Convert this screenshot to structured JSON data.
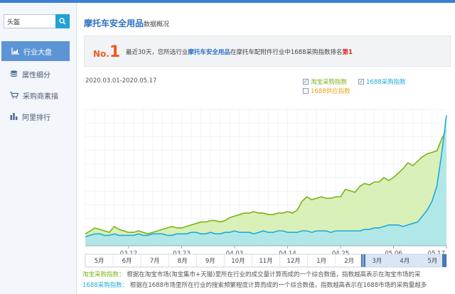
{
  "sidebar": {
    "search": {
      "value": "头盔"
    },
    "items": [
      {
        "label": "行业大盘",
        "icon": "area-chart-icon",
        "active": true
      },
      {
        "label": "属性细分",
        "icon": "layers-icon",
        "active": false
      },
      {
        "label": "采购商素描",
        "icon": "cart-icon",
        "active": false
      },
      {
        "label": "阿里排行",
        "icon": "bar-chart-icon",
        "active": false
      }
    ]
  },
  "header": {
    "title": "摩托车安全用品",
    "subtitle": "数据概况"
  },
  "rank": {
    "no_prefix": "No.",
    "no_value": "1",
    "text_a": "最近30天，您所选行业",
    "industry": "摩托车安全用品",
    "text_b": "在摩托车配附件行业中1688采购指数排名",
    "rank_word": "第1"
  },
  "chart": {
    "date_range": "2020.03.01-2020.05.17",
    "legend": [
      {
        "name": "淘宝采购指数",
        "checked": true,
        "color": "#7ab317"
      },
      {
        "name": "1688采购指数",
        "checked": true,
        "color": "#1fa9d8"
      },
      {
        "name": "1688供应指数",
        "checked": false,
        "color": "#e8a317"
      }
    ]
  },
  "chart_data": {
    "type": "area",
    "x": [
      "03.03",
      "03.04",
      "03.05",
      "03.06",
      "03.07",
      "03.08",
      "03.09",
      "03.10",
      "03.11",
      "03.12",
      "03.13",
      "03.14",
      "03.15",
      "03.16",
      "03.17",
      "03.18",
      "03.19",
      "03.20",
      "03.21",
      "03.22",
      "03.23",
      "03.24",
      "03.25",
      "03.26",
      "03.27",
      "03.28",
      "03.29",
      "03.30",
      "03.31",
      "04.01",
      "04.02",
      "04.03",
      "04.04",
      "04.05",
      "04.06",
      "04.07",
      "04.08",
      "04.09",
      "04.10",
      "04.11",
      "04.12",
      "04.13",
      "04.14",
      "04.15",
      "04.16",
      "04.17",
      "04.18",
      "04.19",
      "04.20",
      "04.21",
      "04.22",
      "04.23",
      "04.24",
      "04.25",
      "04.26",
      "04.27",
      "04.28",
      "04.29",
      "04.30",
      "05.01",
      "05.02",
      "05.03",
      "05.04",
      "05.05",
      "05.06",
      "05.07",
      "05.08",
      "05.09",
      "05.10",
      "05.11",
      "05.12",
      "05.13",
      "05.14",
      "05.15",
      "05.16",
      "05.17"
    ],
    "xticks": [
      "03.12",
      "03.23",
      "04.03",
      "04.14",
      "04.25",
      "05.06",
      "05.17"
    ],
    "series": [
      {
        "name": "淘宝采购指数",
        "color": "#7ab317",
        "fill": "#d5eeb0",
        "values": [
          8,
          10,
          12,
          11,
          10,
          9,
          13,
          11,
          10,
          9,
          9,
          10,
          9,
          8,
          9,
          10,
          11,
          12,
          13,
          12,
          12,
          13,
          14,
          15,
          16,
          16,
          17,
          17,
          16,
          17,
          19,
          20,
          21,
          22,
          22,
          23,
          22,
          22,
          21,
          21,
          22,
          22,
          23,
          22,
          24,
          30,
          33,
          31,
          32,
          33,
          32,
          32,
          33,
          33,
          38,
          37,
          36,
          40,
          42,
          41,
          43,
          43,
          46,
          44,
          46,
          49,
          52,
          56,
          54,
          57,
          60,
          62,
          63,
          64,
          72,
          78
        ]
      },
      {
        "name": "1688采购指数",
        "color": "#1fa9d8",
        "fill": "#a9e6ee",
        "values": [
          6,
          7,
          8,
          8,
          7,
          7,
          8,
          7,
          7,
          7,
          7,
          8,
          7,
          7,
          8,
          8,
          8,
          7,
          7,
          8,
          8,
          8,
          9,
          9,
          8,
          8,
          9,
          8,
          8,
          9,
          9,
          10,
          9,
          9,
          9,
          8,
          9,
          10,
          9,
          9,
          10,
          10,
          9,
          9,
          9,
          10,
          10,
          9,
          10,
          10,
          10,
          9,
          10,
          10,
          10,
          10,
          10,
          10,
          11,
          11,
          12,
          12,
          13,
          14,
          14,
          14,
          13,
          14,
          15,
          16,
          20,
          24,
          30,
          40,
          62,
          88
        ]
      }
    ],
    "ylim": [
      0,
      92
    ],
    "grid": true
  },
  "timeline": {
    "months": [
      "5月",
      "6月",
      "7月",
      "8月",
      "9月",
      "10月",
      "11月",
      "12月",
      "1月",
      "2月",
      "3月",
      "4月",
      "5月"
    ]
  },
  "notes": [
    {
      "label": "淘宝采购指数：",
      "text": "根据在淘宝市场(淘宝集市+天猫)里所在行业的成交量计算而成的一个综合数值，指数越高表示在淘宝市场的采",
      "color": "#7ab317"
    },
    {
      "label": "1688采购指数：",
      "text": "根据在1688市场里所在行业的搜索频繁程度计算而成的一个综合数值，指数越高表示在1688市场的采购量越多",
      "color": "#1fa9d8"
    }
  ]
}
